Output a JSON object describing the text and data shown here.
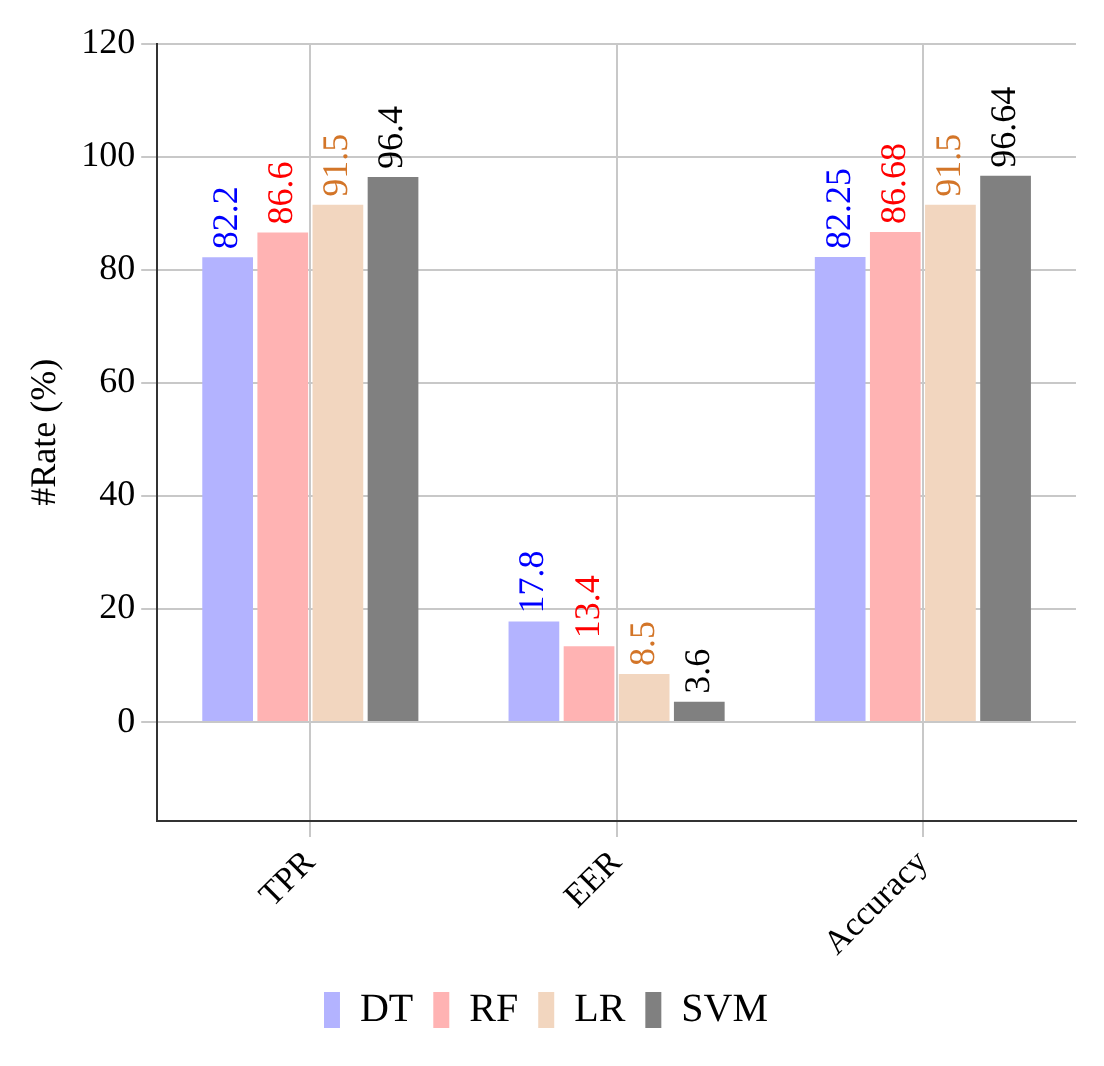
{
  "chart_data": {
    "type": "bar",
    "ylabel": "#Rate (%)",
    "categories": [
      "TPR",
      "EER",
      "Accuracy"
    ],
    "series": [
      {
        "name": "DT",
        "color": "#b3b3ff",
        "values": [
          82.2,
          17.8,
          82.25
        ]
      },
      {
        "name": "RF",
        "color": "#ffb3b3",
        "values": [
          86.6,
          13.4,
          86.68
        ]
      },
      {
        "name": "LR",
        "color": "#f2d6bf",
        "values": [
          91.5,
          8.5,
          91.5
        ]
      },
      {
        "name": "SVM",
        "color": "#808080",
        "values": [
          96.4,
          3.6,
          96.64
        ]
      }
    ],
    "ylim": [
      -17.5,
      120
    ],
    "yticks": [
      0,
      20,
      40,
      60,
      80,
      100,
      120
    ],
    "grid": true,
    "legend": "bottom",
    "data_labels": true
  }
}
